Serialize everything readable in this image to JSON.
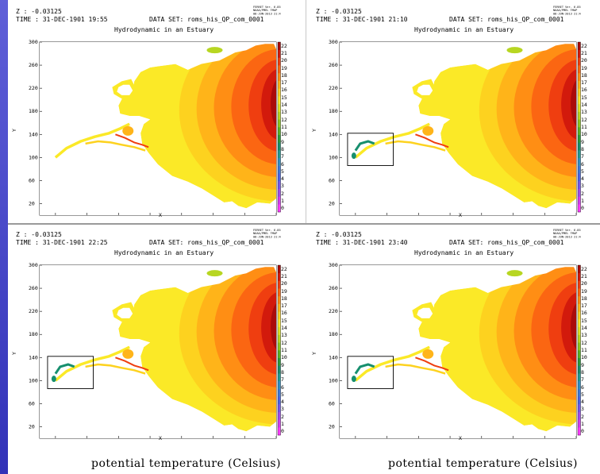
{
  "caption": "potential temperature (Celsius)",
  "colors": {
    "scale": [
      "#ff3aff",
      "#d23cf0",
      "#a04bef",
      "#7356ee",
      "#4a62ea",
      "#3b78dc",
      "#2f8fc6",
      "#1f9a96",
      "#178f6e",
      "#2a9d3a",
      "#59b326",
      "#8cc81f",
      "#b7d622",
      "#dde226",
      "#fbe927",
      "#fdd21f",
      "#ffb419",
      "#ff8e14",
      "#fb6612",
      "#ef3e10",
      "#d21a0c",
      "#aa0b0a"
    ]
  },
  "panels": [
    {
      "z_line": "Z : -0.03125",
      "time_line": "TIME : 31-DEC-1901 19:55",
      "dataset_line": "DATA SET: roms_his_QP_com_0001",
      "title": "Hydrodynamic  in an Estuary",
      "stamp": [
        "FERRET Ver. 6.85",
        "NOAA/PMEL TMAP",
        "08-JUN-2013 21:47:44"
      ],
      "highlight_box": false
    },
    {
      "z_line": "Z : -0.03125",
      "time_line": "TIME : 31-DEC-1901 21:10",
      "dataset_line": "DATA SET: roms_his_QP_com_0001",
      "title": "Hydrodynamic  in an Estuary",
      "stamp": [
        "FERRET Ver. 6.85",
        "NOAA/PMEL TMAP",
        "08-JUN-2013 21:48:03"
      ],
      "highlight_box": true
    },
    {
      "z_line": "Z : -0.03125",
      "time_line": "TIME : 31-DEC-1901 22:25",
      "dataset_line": "DATA SET: roms_his_QP_com_0001",
      "title": "Hydrodynamic  in an Estuary",
      "stamp": [
        "FERRET Ver. 6.85",
        "NOAA/PMEL TMAP",
        "08-JUN-2013 21:48:16"
      ],
      "highlight_box": true
    },
    {
      "z_line": "Z : -0.03125",
      "time_line": "TIME : 31-DEC-1901 23:40",
      "dataset_line": "DATA SET: roms_his_QP_com_0001",
      "title": "Hydrodynamic  in an Estuary",
      "stamp": [
        "FERRET Ver. 6.85",
        "NOAA/PMEL TMAP",
        "08-JUN-2013 21:48:33"
      ],
      "highlight_box": true
    }
  ],
  "chart_data": {
    "type": "heatmap",
    "title": "Hydrodynamic  in an Estuary",
    "xlabel": "X",
    "ylabel": "Y",
    "colorbar_label": "potential temperature (Celsius)",
    "xlim": [
      0,
      300
    ],
    "ylim": [
      0,
      300
    ],
    "x_ticks": [
      20,
      60,
      100,
      140,
      180,
      220,
      260,
      300
    ],
    "y_ticks": [
      20,
      60,
      100,
      140,
      180,
      220,
      260,
      300
    ],
    "colorbar_ticks": [
      0,
      1,
      2,
      3,
      4,
      5,
      6,
      7,
      8,
      9,
      10,
      11,
      12,
      13,
      14,
      15,
      16,
      17,
      18,
      19,
      20,
      21,
      22
    ],
    "colorbar_range": [
      0,
      22
    ],
    "timesteps": [
      "31-DEC-1901 19:55",
      "31-DEC-1901 21:10",
      "31-DEC-1901 22:25",
      "31-DEC-1901 23:40"
    ],
    "z": -0.03125,
    "dataset": "roms_his_QP_com_0001"
  }
}
